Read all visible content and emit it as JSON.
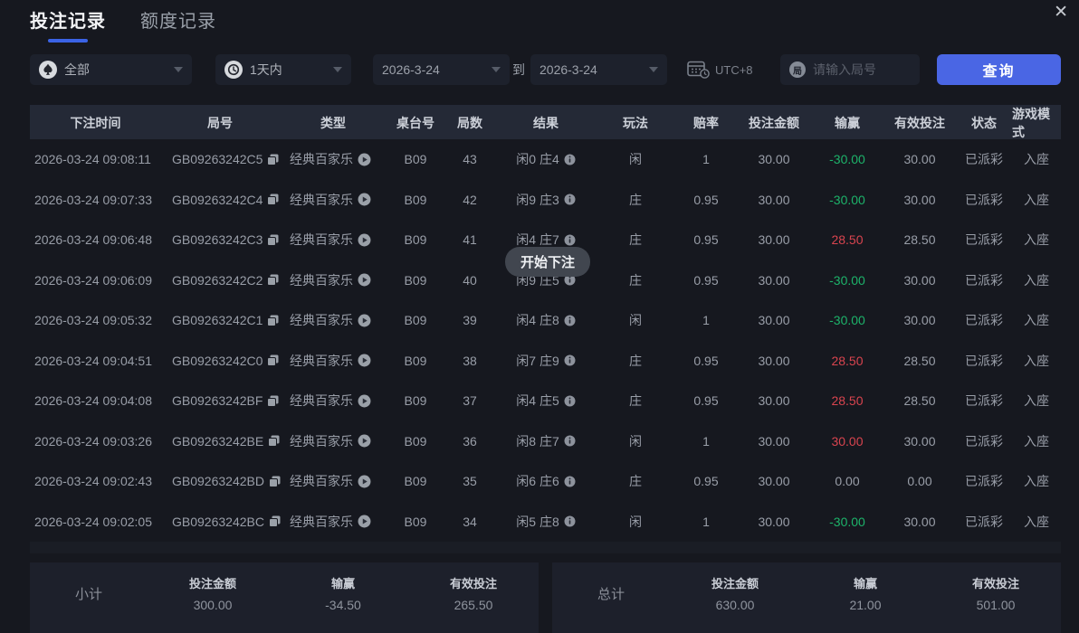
{
  "window": {
    "close_glyph": "✕"
  },
  "tabs": {
    "bet_records": "投注记录",
    "quota_records": "额度记录"
  },
  "filters": {
    "game_type": "全部",
    "time_range": "1天内",
    "date_from": "2026-3-24",
    "to_label": "到",
    "date_to": "2026-3-24",
    "timezone": "UTC+8",
    "round_icon_char": "局",
    "round_placeholder": "请输入局号",
    "query_button": "查询"
  },
  "table": {
    "headers": [
      "下注时间",
      "局号",
      "类型",
      "桌台号",
      "局数",
      "结果",
      "玩法",
      "赔率",
      "投注金额",
      "输赢",
      "有效投注",
      "状态",
      "游戏模式"
    ],
    "rows": [
      {
        "time": "2026-03-24 09:08:11",
        "round_id": "GB09263242C5",
        "type": "经典百家乐",
        "table_no": "B09",
        "round_no": "43",
        "result": "闲0 庄4",
        "bet_on": "闲",
        "odds": "1",
        "amount": "30.00",
        "win_loss": "-30.00",
        "win_loss_color": "green",
        "valid_bet": "30.00",
        "status": "已派彩",
        "mode": "入座"
      },
      {
        "time": "2026-03-24 09:07:33",
        "round_id": "GB09263242C4",
        "type": "经典百家乐",
        "table_no": "B09",
        "round_no": "42",
        "result": "闲9 庄3",
        "bet_on": "庄",
        "odds": "0.95",
        "amount": "30.00",
        "win_loss": "-30.00",
        "win_loss_color": "green",
        "valid_bet": "30.00",
        "status": "已派彩",
        "mode": "入座"
      },
      {
        "time": "2026-03-24 09:06:48",
        "round_id": "GB09263242C3",
        "type": "经典百家乐",
        "table_no": "B09",
        "round_no": "41",
        "result": "闲4 庄7",
        "bet_on": "庄",
        "odds": "0.95",
        "amount": "30.00",
        "win_loss": "28.50",
        "win_loss_color": "red",
        "valid_bet": "28.50",
        "status": "已派彩",
        "mode": "入座"
      },
      {
        "time": "2026-03-24 09:06:09",
        "round_id": "GB09263242C2",
        "type": "经典百家乐",
        "table_no": "B09",
        "round_no": "40",
        "result": "闲9 庄5",
        "bet_on": "庄",
        "odds": "0.95",
        "amount": "30.00",
        "win_loss": "-30.00",
        "win_loss_color": "green",
        "valid_bet": "30.00",
        "status": "已派彩",
        "mode": "入座"
      },
      {
        "time": "2026-03-24 09:05:32",
        "round_id": "GB09263242C1",
        "type": "经典百家乐",
        "table_no": "B09",
        "round_no": "39",
        "result": "闲4 庄8",
        "bet_on": "闲",
        "odds": "1",
        "amount": "30.00",
        "win_loss": "-30.00",
        "win_loss_color": "green",
        "valid_bet": "30.00",
        "status": "已派彩",
        "mode": "入座"
      },
      {
        "time": "2026-03-24 09:04:51",
        "round_id": "GB09263242C0",
        "type": "经典百家乐",
        "table_no": "B09",
        "round_no": "38",
        "result": "闲7 庄9",
        "bet_on": "庄",
        "odds": "0.95",
        "amount": "30.00",
        "win_loss": "28.50",
        "win_loss_color": "red",
        "valid_bet": "28.50",
        "status": "已派彩",
        "mode": "入座"
      },
      {
        "time": "2026-03-24 09:04:08",
        "round_id": "GB09263242BF",
        "type": "经典百家乐",
        "table_no": "B09",
        "round_no": "37",
        "result": "闲4 庄5",
        "bet_on": "庄",
        "odds": "0.95",
        "amount": "30.00",
        "win_loss": "28.50",
        "win_loss_color": "red",
        "valid_bet": "28.50",
        "status": "已派彩",
        "mode": "入座"
      },
      {
        "time": "2026-03-24 09:03:26",
        "round_id": "GB09263242BE",
        "type": "经典百家乐",
        "table_no": "B09",
        "round_no": "36",
        "result": "闲8 庄7",
        "bet_on": "闲",
        "odds": "1",
        "amount": "30.00",
        "win_loss": "30.00",
        "win_loss_color": "red",
        "valid_bet": "30.00",
        "status": "已派彩",
        "mode": "入座"
      },
      {
        "time": "2026-03-24 09:02:43",
        "round_id": "GB09263242BD",
        "type": "经典百家乐",
        "table_no": "B09",
        "round_no": "35",
        "result": "闲6 庄6",
        "bet_on": "庄",
        "odds": "0.95",
        "amount": "30.00",
        "win_loss": "0.00",
        "win_loss_color": "",
        "valid_bet": "0.00",
        "status": "已派彩",
        "mode": "入座"
      },
      {
        "time": "2026-03-24 09:02:05",
        "round_id": "GB09263242BC",
        "type": "经典百家乐",
        "table_no": "B09",
        "round_no": "34",
        "result": "闲5 庄8",
        "bet_on": "闲",
        "odds": "1",
        "amount": "30.00",
        "win_loss": "-30.00",
        "win_loss_color": "green",
        "valid_bet": "30.00",
        "status": "已派彩",
        "mode": "入座"
      }
    ]
  },
  "tooltip": {
    "text": "开始下注"
  },
  "summary": {
    "subtotal": {
      "label": "小计",
      "items": [
        {
          "label": "投注金额",
          "value": "300.00",
          "color": ""
        },
        {
          "label": "输赢",
          "value": "-34.50",
          "color": "green"
        },
        {
          "label": "有效投注",
          "value": "265.50",
          "color": ""
        }
      ]
    },
    "total": {
      "label": "总计",
      "items": [
        {
          "label": "投注金额",
          "value": "630.00",
          "color": ""
        },
        {
          "label": "输赢",
          "value": "21.00",
          "color": "red"
        },
        {
          "label": "有效投注",
          "value": "501.00",
          "color": ""
        }
      ]
    }
  },
  "colors": {
    "accent_blue": "#4a66e4",
    "win_red": "#d9444f",
    "loss_green": "#1db36a",
    "background": "#16181f",
    "header_bg": "#242936"
  }
}
